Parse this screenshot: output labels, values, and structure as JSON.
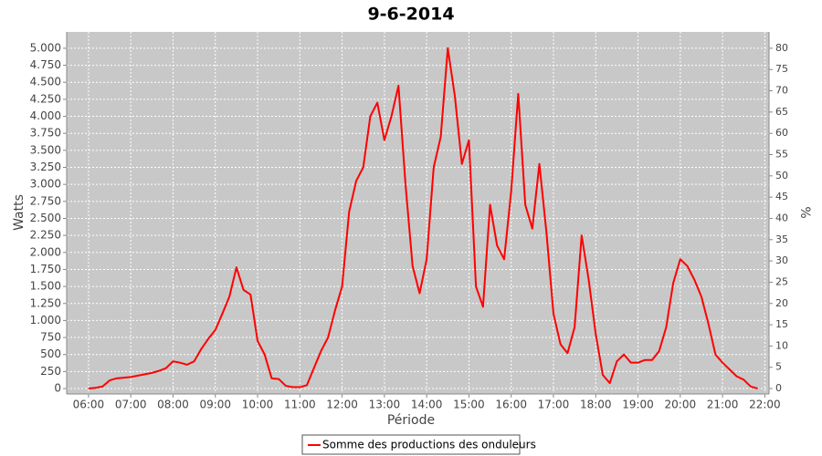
{
  "chart_data": {
    "type": "line",
    "title": "9-6-2014",
    "x_label": "Période",
    "y_label": "Watts",
    "y2_label": "%",
    "x": [
      "06:00",
      "06:10",
      "06:20",
      "06:30",
      "06:40",
      "06:50",
      "07:00",
      "07:10",
      "07:20",
      "07:30",
      "07:40",
      "07:50",
      "08:00",
      "08:10",
      "08:20",
      "08:30",
      "08:40",
      "08:50",
      "09:00",
      "09:10",
      "09:20",
      "09:30",
      "09:40",
      "09:50",
      "10:00",
      "10:10",
      "10:20",
      "10:30",
      "10:40",
      "10:50",
      "11:00",
      "11:10",
      "11:20",
      "11:30",
      "11:40",
      "11:50",
      "12:00",
      "12:10",
      "12:20",
      "12:30",
      "12:40",
      "12:50",
      "13:00",
      "13:10",
      "13:20",
      "13:30",
      "13:40",
      "13:50",
      "14:00",
      "14:10",
      "14:20",
      "14:30",
      "14:40",
      "14:50",
      "15:00",
      "15:10",
      "15:20",
      "15:30",
      "15:40",
      "15:50",
      "16:00",
      "16:10",
      "16:20",
      "16:30",
      "16:40",
      "16:50",
      "17:00",
      "17:10",
      "17:20",
      "17:30",
      "17:40",
      "17:50",
      "18:00",
      "18:10",
      "18:20",
      "18:30",
      "18:40",
      "18:50",
      "19:00",
      "19:10",
      "19:20",
      "19:30",
      "19:40",
      "19:50",
      "20:00",
      "20:10",
      "20:20",
      "20:30",
      "20:40",
      "20:50",
      "21:00",
      "21:10",
      "21:20",
      "21:30",
      "21:40",
      "21:50"
    ],
    "series": [
      {
        "name": "Somme des productions des onduleurs",
        "color": "#ff0000",
        "values": [
          0,
          10,
          30,
          120,
          150,
          160,
          170,
          190,
          210,
          230,
          260,
          300,
          400,
          380,
          350,
          400,
          580,
          730,
          860,
          1100,
          1350,
          1780,
          1450,
          1380,
          700,
          500,
          150,
          140,
          40,
          20,
          20,
          50,
          300,
          550,
          750,
          1150,
          1500,
          2600,
          3050,
          3250,
          4000,
          4200,
          3650,
          4000,
          4450,
          3000,
          1800,
          1400,
          1900,
          3250,
          3700,
          5000,
          4300,
          3300,
          3650,
          1500,
          1200,
          2700,
          2100,
          1900,
          2900,
          4330,
          2700,
          2350,
          3300,
          2300,
          1100,
          650,
          520,
          900,
          2250,
          1600,
          800,
          200,
          80,
          400,
          500,
          380,
          380,
          420,
          420,
          550,
          900,
          1550,
          1900,
          1800,
          1600,
          1350,
          950,
          500,
          380,
          280,
          180,
          130,
          30,
          0
        ]
      }
    ],
    "xlim": [
      "05:29",
      "22:06"
    ],
    "xticks": [
      "06:00",
      "07:00",
      "08:00",
      "09:00",
      "10:00",
      "11:00",
      "12:00",
      "13:00",
      "14:00",
      "15:00",
      "16:00",
      "17:00",
      "18:00",
      "19:00",
      "20:00",
      "21:00",
      "22:00"
    ],
    "ylim": [
      -80,
      5240
    ],
    "yticks": [
      0,
      250,
      500,
      750,
      {
        "value": 1000,
        "label": "1.000"
      },
      {
        "value": 1250,
        "label": "1.250"
      },
      {
        "value": 1500,
        "label": "1.500"
      },
      {
        "value": 1750,
        "label": "1.750"
      },
      {
        "value": 2000,
        "label": "2.000"
      },
      {
        "value": 2250,
        "label": "2.250"
      },
      {
        "value": 2500,
        "label": "2.500"
      },
      {
        "value": 2750,
        "label": "2.750"
      },
      {
        "value": 3000,
        "label": "3.000"
      },
      {
        "value": 3250,
        "label": "3.250"
      },
      {
        "value": 3500,
        "label": "3.500"
      },
      {
        "value": 3750,
        "label": "3.750"
      },
      {
        "value": 4000,
        "label": "4.000"
      },
      {
        "value": 4250,
        "label": "4.250"
      },
      {
        "value": 4500,
        "label": "4.500"
      },
      {
        "value": 4750,
        "label": "4.750"
      },
      {
        "value": 5000,
        "label": "5.000"
      }
    ],
    "y2lim": [
      -1.28,
      83.84
    ],
    "y2ticks": [
      0,
      5,
      10,
      15,
      20,
      25,
      30,
      35,
      40,
      45,
      50,
      55,
      60,
      65,
      70,
      75,
      80
    ],
    "grid": true,
    "legend": "bottom"
  }
}
